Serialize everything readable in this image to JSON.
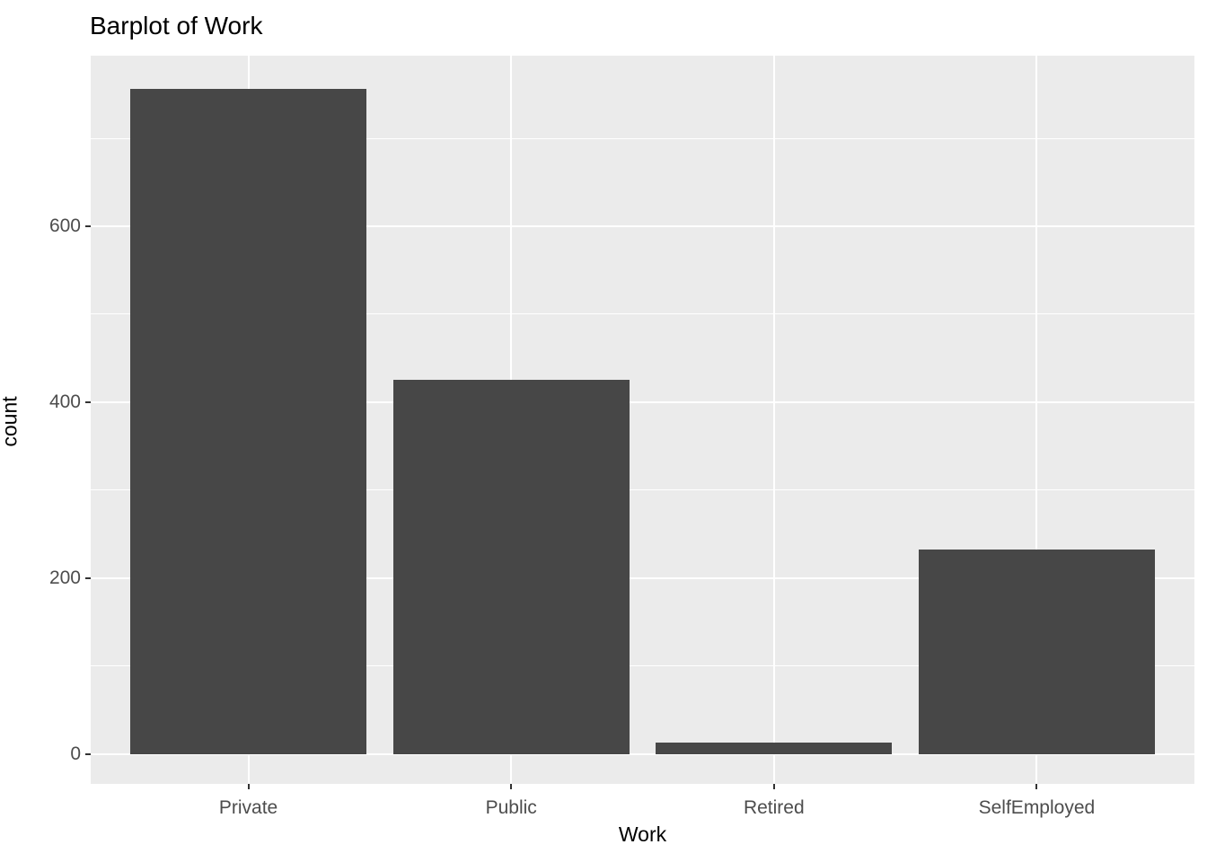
{
  "chart_data": {
    "type": "bar",
    "title": "Barplot of Work",
    "xlabel": "Work",
    "ylabel": "count",
    "categories": [
      "Private",
      "Public",
      "Retired",
      "SelfEmployed"
    ],
    "values": [
      756,
      425,
      13,
      232
    ],
    "y_major_ticks": [
      0,
      200,
      400,
      600
    ],
    "y_minor_gridlines": [
      100,
      300,
      500,
      700
    ],
    "ylim_display": [
      -34,
      794
    ],
    "bar_width_fraction": 0.9,
    "grid": true,
    "legend": "none",
    "style": {
      "bar_fill": "#474747",
      "panel_background": "#EBEBEB",
      "gridline_color": "#FFFFFF",
      "tick_label_color": "#4D4D4D",
      "tick_mark_color": "#333333",
      "axis_title_color": "#000000",
      "title_color": "#000000",
      "page_background": "#FFFFFF"
    }
  }
}
